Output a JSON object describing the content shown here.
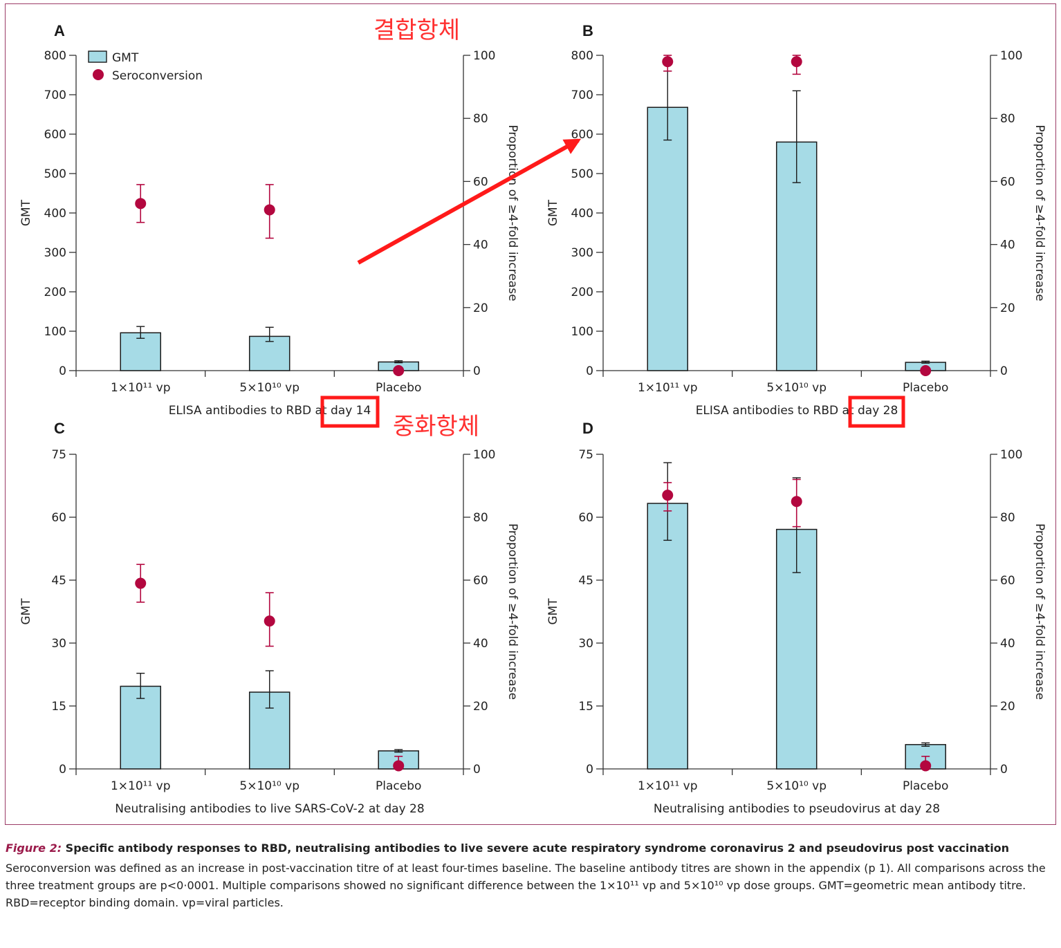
{
  "chart_data": [
    {
      "panel": "A",
      "type": "bar",
      "categories": [
        "1×10¹¹ vp",
        "5×10¹⁰ vp",
        "Placebo"
      ],
      "xlabel": "ELISA antibodies to RBD at day 14",
      "ylabel": "GMT",
      "y2label": "Proportion of ≥4-fold increase",
      "ylim": [
        0,
        800
      ],
      "yticks": [
        "0",
        "100",
        "200",
        "300",
        "400",
        "500",
        "600",
        "700",
        "800"
      ],
      "y2lim": [
        0,
        100
      ],
      "y2ticks": [
        "0",
        "20",
        "40",
        "60",
        "80",
        "100"
      ],
      "legend": {
        "position": "top-left",
        "items": [
          "GMT",
          "Seroconversion"
        ]
      },
      "series": [
        {
          "name": "GMT",
          "kind": "bar",
          "values": [
            96,
            87,
            22
          ],
          "err_low": [
            82,
            74,
            20
          ],
          "err_high": [
            112,
            110,
            25
          ]
        },
        {
          "name": "Seroconversion",
          "kind": "point",
          "axis": "right",
          "values": [
            53,
            51,
            0
          ],
          "err_low": [
            47,
            42,
            0
          ],
          "err_high": [
            59,
            59,
            0
          ]
        }
      ]
    },
    {
      "panel": "B",
      "type": "bar",
      "categories": [
        "1×10¹¹ vp",
        "5×10¹⁰ vp",
        "Placebo"
      ],
      "xlabel": "ELISA antibodies to RBD at day 28",
      "ylabel": "GMT",
      "y2label": "Proportion of ≥4-fold increase",
      "ylim": [
        0,
        800
      ],
      "yticks": [
        "0",
        "100",
        "200",
        "300",
        "400",
        "500",
        "600",
        "700",
        "800"
      ],
      "y2lim": [
        0,
        100
      ],
      "y2ticks": [
        "0",
        "20",
        "40",
        "60",
        "80",
        "100"
      ],
      "series": [
        {
          "name": "GMT",
          "kind": "bar",
          "values": [
            668,
            580,
            21
          ],
          "err_low": [
            585,
            477,
            19
          ],
          "err_high": [
            760,
            710,
            24
          ]
        },
        {
          "name": "Seroconversion",
          "kind": "point",
          "axis": "right",
          "values": [
            98,
            98,
            0
          ],
          "err_low": [
            95,
            94,
            0
          ],
          "err_high": [
            100,
            100,
            0
          ]
        }
      ]
    },
    {
      "panel": "C",
      "type": "bar",
      "categories": [
        "1×10¹¹ vp",
        "5×10¹⁰ vp",
        "Placebo"
      ],
      "xlabel": "Neutralising antibodies to live SARS-CoV-2 at day 28",
      "ylabel": "GMT",
      "y2label": "Proportion of ≥4-fold increase",
      "ylim": [
        0,
        75
      ],
      "yticks": [
        "0",
        "15",
        "30",
        "45",
        "60",
        "75"
      ],
      "y2lim": [
        0,
        100
      ],
      "y2ticks": [
        "0",
        "20",
        "40",
        "60",
        "80",
        "100"
      ],
      "series": [
        {
          "name": "GMT",
          "kind": "bar",
          "values": [
            19.7,
            18.3,
            4.3
          ],
          "err_low": [
            16.8,
            14.5,
            4.0
          ],
          "err_high": [
            22.8,
            23.4,
            4.6
          ]
        },
        {
          "name": "Seroconversion",
          "kind": "point",
          "axis": "right",
          "values": [
            59,
            47,
            1
          ],
          "err_low": [
            53,
            39,
            0
          ],
          "err_high": [
            65,
            56,
            4
          ]
        }
      ]
    },
    {
      "panel": "D",
      "type": "bar",
      "categories": [
        "1×10¹¹ vp",
        "5×10¹⁰ vp",
        "Placebo"
      ],
      "xlabel": "Neutralising antibodies to pseudovirus at day 28",
      "ylabel": "GMT",
      "y2label": "Proportion of ≥4-fold increase",
      "ylim": [
        0,
        75
      ],
      "yticks": [
        "0",
        "15",
        "30",
        "45",
        "60",
        "75"
      ],
      "y2lim": [
        0,
        100
      ],
      "y2ticks": [
        "0",
        "20",
        "40",
        "60",
        "80",
        "100"
      ],
      "series": [
        {
          "name": "GMT",
          "kind": "bar",
          "values": [
            63.3,
            57.1,
            5.8
          ],
          "err_low": [
            54.5,
            46.8,
            5.4
          ],
          "err_high": [
            73.0,
            69.4,
            6.2
          ]
        },
        {
          "name": "Seroconversion",
          "kind": "point",
          "axis": "right",
          "values": [
            87,
            85,
            1
          ],
          "err_low": [
            82,
            77,
            0
          ],
          "err_high": [
            91,
            92,
            4
          ]
        }
      ]
    }
  ],
  "annotations": {
    "binding_note": "결합항체",
    "neutralising_note": "중화항체",
    "highlight_color": "#ff1a1a"
  },
  "colors": {
    "bar_fill": "#a6dbe6",
    "bar_stroke": "#1a1a1a",
    "point_color": "#b3073f",
    "frame_color": "#9b3b66",
    "caption_label_color": "#9b1b4b"
  },
  "caption": {
    "label": "Figure 2:",
    "title": " Specific antibody responses to RBD, neutralising antibodies to live severe acute respiratory syndrome coronavirus 2 and pseudovirus post vaccination",
    "body": "Seroconversion was defined as an increase in post-vaccination titre of at least four-times baseline. The baseline antibody titres are shown in the appendix (p 1). All comparisons across the three treatment groups are p<0·0001. Multiple comparisons showed no significant difference between the 1×10¹¹ vp and 5×10¹⁰ vp dose groups. GMT=geometric mean antibody titre. RBD=receptor binding domain. vp=viral particles."
  }
}
